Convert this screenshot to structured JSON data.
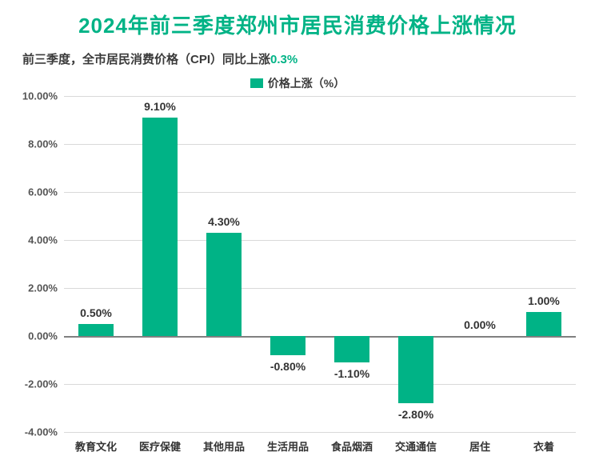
{
  "title": {
    "text": "2024年前三季度郑州市居民消费价格上涨情况",
    "color": "#00b386",
    "fontsize": 26
  },
  "subtitle": {
    "prefix": "前三季度，全市居民消费价格（CPI）同比上涨",
    "highlight": "0.3%",
    "prefix_color": "#3a3a3a",
    "highlight_color": "#00b386",
    "fontsize": 15
  },
  "legend": {
    "label": "价格上涨（%）",
    "swatch_color": "#00b386",
    "fontsize": 14,
    "text_color": "#3a3a3a"
  },
  "chart": {
    "type": "bar",
    "categories": [
      "教育文化",
      "医疗保健",
      "其他用品",
      "生活用品",
      "食品烟酒",
      "交通通信",
      "居住",
      "衣着"
    ],
    "values": [
      0.5,
      9.1,
      4.3,
      -0.8,
      -1.1,
      -2.8,
      0.0,
      1.0
    ],
    "value_labels": [
      "0.50%",
      "9.10%",
      "4.30%",
      "-0.80%",
      "-1.10%",
      "-2.80%",
      "0.00%",
      "1.00%"
    ],
    "bar_color": "#00b386",
    "bar_width_ratio": 0.55,
    "ylim": [
      -4,
      10
    ],
    "ytick_step": 2,
    "yticks": [
      -4,
      -2,
      0,
      2,
      4,
      6,
      8,
      10
    ],
    "ytick_labels": [
      "-4.00%",
      "-2.00%",
      "0.00%",
      "2.00%",
      "4.00%",
      "6.00%",
      "8.00%",
      "10.00%"
    ],
    "grid_color": "#d9d9d9",
    "axis_color": "#808080",
    "tick_label_color": "#555555",
    "tick_fontsize": 13,
    "value_label_fontsize": 14,
    "value_label_color": "#333333",
    "x_label_fontsize": 13,
    "x_label_color": "#333333",
    "background_color": "#ffffff"
  }
}
